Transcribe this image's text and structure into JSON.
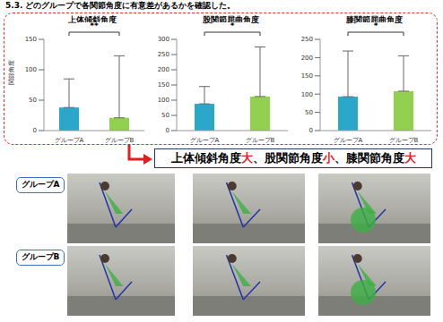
{
  "header": "5.3. どのグループで各関節角度に有意差があるかを確認した。",
  "chart_data": [
    {
      "type": "bar",
      "title": "上体傾斜角度",
      "y_label": "関節角度",
      "categories": [
        "グループA",
        "グループB"
      ],
      "values": [
        38,
        21
      ],
      "errors": [
        47,
        102
      ],
      "ylim": [
        0,
        150
      ],
      "yticks": [
        0,
        50,
        100,
        150
      ],
      "colors": [
        "#2aa7c9",
        "#92d050"
      ],
      "significance": "**"
    },
    {
      "type": "bar",
      "title": "股関節屈曲角度",
      "categories": [
        "グループA",
        "グループB"
      ],
      "values": [
        88,
        112
      ],
      "errors": [
        57,
        163
      ],
      "ylim": [
        0,
        300
      ],
      "yticks": [
        0,
        50,
        100,
        150,
        200,
        250,
        300
      ],
      "colors": [
        "#2aa7c9",
        "#92d050"
      ],
      "significance": "*"
    },
    {
      "type": "bar",
      "title": "膝関節屈曲角度",
      "categories": [
        "グループA",
        "グループB"
      ],
      "values": [
        93,
        108
      ],
      "errors": [
        125,
        97
      ],
      "ylim": [
        0,
        250
      ],
      "yticks": [
        0,
        50,
        100,
        150,
        200,
        250
      ],
      "colors": [
        "#2aa7c9",
        "#92d050"
      ],
      "significance": "*"
    }
  ],
  "banner": [
    "上体傾斜角度",
    "大",
    "、股関節角度",
    "小",
    "、膝関節角度",
    "大"
  ],
  "photo_labels": [
    "グループA",
    "グループB"
  ]
}
